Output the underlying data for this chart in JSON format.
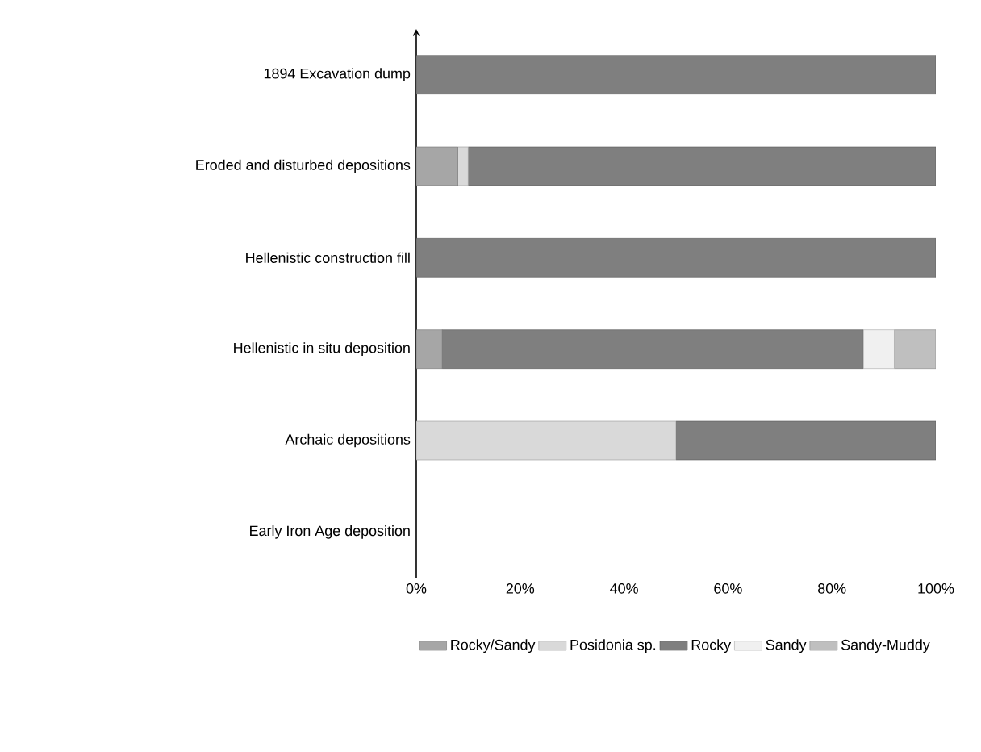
{
  "chart_data": {
    "type": "bar",
    "orientation": "horizontal",
    "stacked": true,
    "categories": [
      "1894 Excavation dump",
      "Eroded and disturbed depositions",
      "Hellenistic construction fill",
      "Hellenistic in situ deposition",
      "Archaic depositions",
      "Early Iron Age deposition"
    ],
    "series": [
      {
        "name": "Rocky/Sandy",
        "color": "#a6a6a6",
        "values": [
          0,
          8,
          0,
          5,
          0,
          0
        ]
      },
      {
        "name": "Posidonia sp.",
        "color": "#d9d9d9",
        "values": [
          0,
          2,
          0,
          0,
          50,
          0
        ]
      },
      {
        "name": "Rocky",
        "color": "#7f7f7f",
        "values": [
          100,
          90,
          100,
          81,
          50,
          0
        ]
      },
      {
        "name": "Sandy",
        "color": "#f0f0f0",
        "values": [
          0,
          0,
          0,
          6,
          0,
          0
        ]
      },
      {
        "name": "Sandy-Muddy",
        "color": "#bfbfbf",
        "values": [
          0,
          0,
          0,
          8,
          0,
          0
        ]
      }
    ],
    "xlim": [
      0,
      100
    ],
    "xticks": [
      {
        "value": 0,
        "label": "0%"
      },
      {
        "value": 20,
        "label": "20%"
      },
      {
        "value": 40,
        "label": "40%"
      },
      {
        "value": 60,
        "label": "60%"
      },
      {
        "value": 80,
        "label": "80%"
      },
      {
        "value": 100,
        "label": "100%"
      }
    ],
    "legend": "bottom"
  }
}
